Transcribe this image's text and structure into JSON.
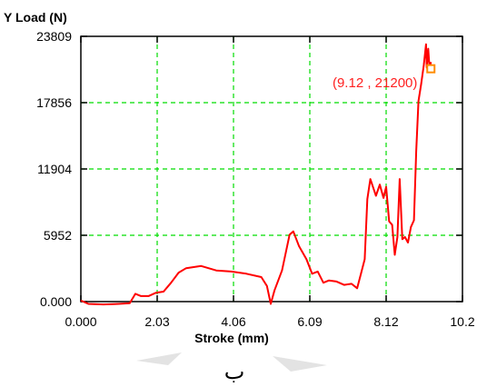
{
  "chart_data": {
    "type": "line",
    "ylabel": "Y Load (N)",
    "xlabel": "Stroke (mm)",
    "xlim": [
      0,
      10.15
    ],
    "ylim": [
      0,
      23809
    ],
    "x_ticks": [
      "0.000",
      "2.03",
      "4.06",
      "6.09",
      "8.12",
      "10.2"
    ],
    "y_ticks": [
      "0.000",
      "5952",
      "11904",
      "17856",
      "23809"
    ],
    "grid": true,
    "series_color": "#ff0000",
    "grid_color": "#00dd00",
    "points": [
      [
        0.0,
        100
      ],
      [
        0.2,
        -200
      ],
      [
        0.6,
        -250
      ],
      [
        1.0,
        -200
      ],
      [
        1.3,
        -150
      ],
      [
        1.45,
        700
      ],
      [
        1.6,
        500
      ],
      [
        1.8,
        500
      ],
      [
        2.0,
        800
      ],
      [
        2.2,
        900
      ],
      [
        2.4,
        1700
      ],
      [
        2.6,
        2600
      ],
      [
        2.8,
        3000
      ],
      [
        3.2,
        3200
      ],
      [
        3.6,
        2800
      ],
      [
        4.0,
        2700
      ],
      [
        4.4,
        2500
      ],
      [
        4.8,
        2200
      ],
      [
        4.95,
        1400
      ],
      [
        5.05,
        -200
      ],
      [
        5.15,
        1000
      ],
      [
        5.35,
        2800
      ],
      [
        5.55,
        6000
      ],
      [
        5.65,
        6300
      ],
      [
        5.8,
        5000
      ],
      [
        6.0,
        3800
      ],
      [
        6.15,
        2500
      ],
      [
        6.3,
        2700
      ],
      [
        6.45,
        1700
      ],
      [
        6.6,
        1900
      ],
      [
        6.8,
        1800
      ],
      [
        7.0,
        1500
      ],
      [
        7.2,
        1600
      ],
      [
        7.35,
        1200
      ],
      [
        7.45,
        2500
      ],
      [
        7.55,
        3800
      ],
      [
        7.62,
        9200
      ],
      [
        7.7,
        11000
      ],
      [
        7.78,
        10200
      ],
      [
        7.85,
        9500
      ],
      [
        7.95,
        10500
      ],
      [
        8.05,
        9300
      ],
      [
        8.12,
        10300
      ],
      [
        8.2,
        7200
      ],
      [
        8.28,
        6900
      ],
      [
        8.35,
        4200
      ],
      [
        8.42,
        5800
      ],
      [
        8.48,
        11000
      ],
      [
        8.55,
        5600
      ],
      [
        8.62,
        5800
      ],
      [
        8.7,
        5300
      ],
      [
        8.78,
        6700
      ],
      [
        8.86,
        7300
      ],
      [
        8.92,
        13500
      ],
      [
        8.98,
        18000
      ],
      [
        9.05,
        19500
      ],
      [
        9.12,
        21200
      ],
      [
        9.18,
        23100
      ],
      [
        9.2,
        21000
      ],
      [
        9.24,
        22700
      ],
      [
        9.28,
        20700
      ],
      [
        9.31,
        21500
      ]
    ],
    "marker_point": [
      9.31,
      20900
    ],
    "annotations": [
      {
        "text": "(9.12 , 21200)",
        "x": 9.12,
        "y": 21200
      }
    ]
  },
  "footer_letter": "ب"
}
